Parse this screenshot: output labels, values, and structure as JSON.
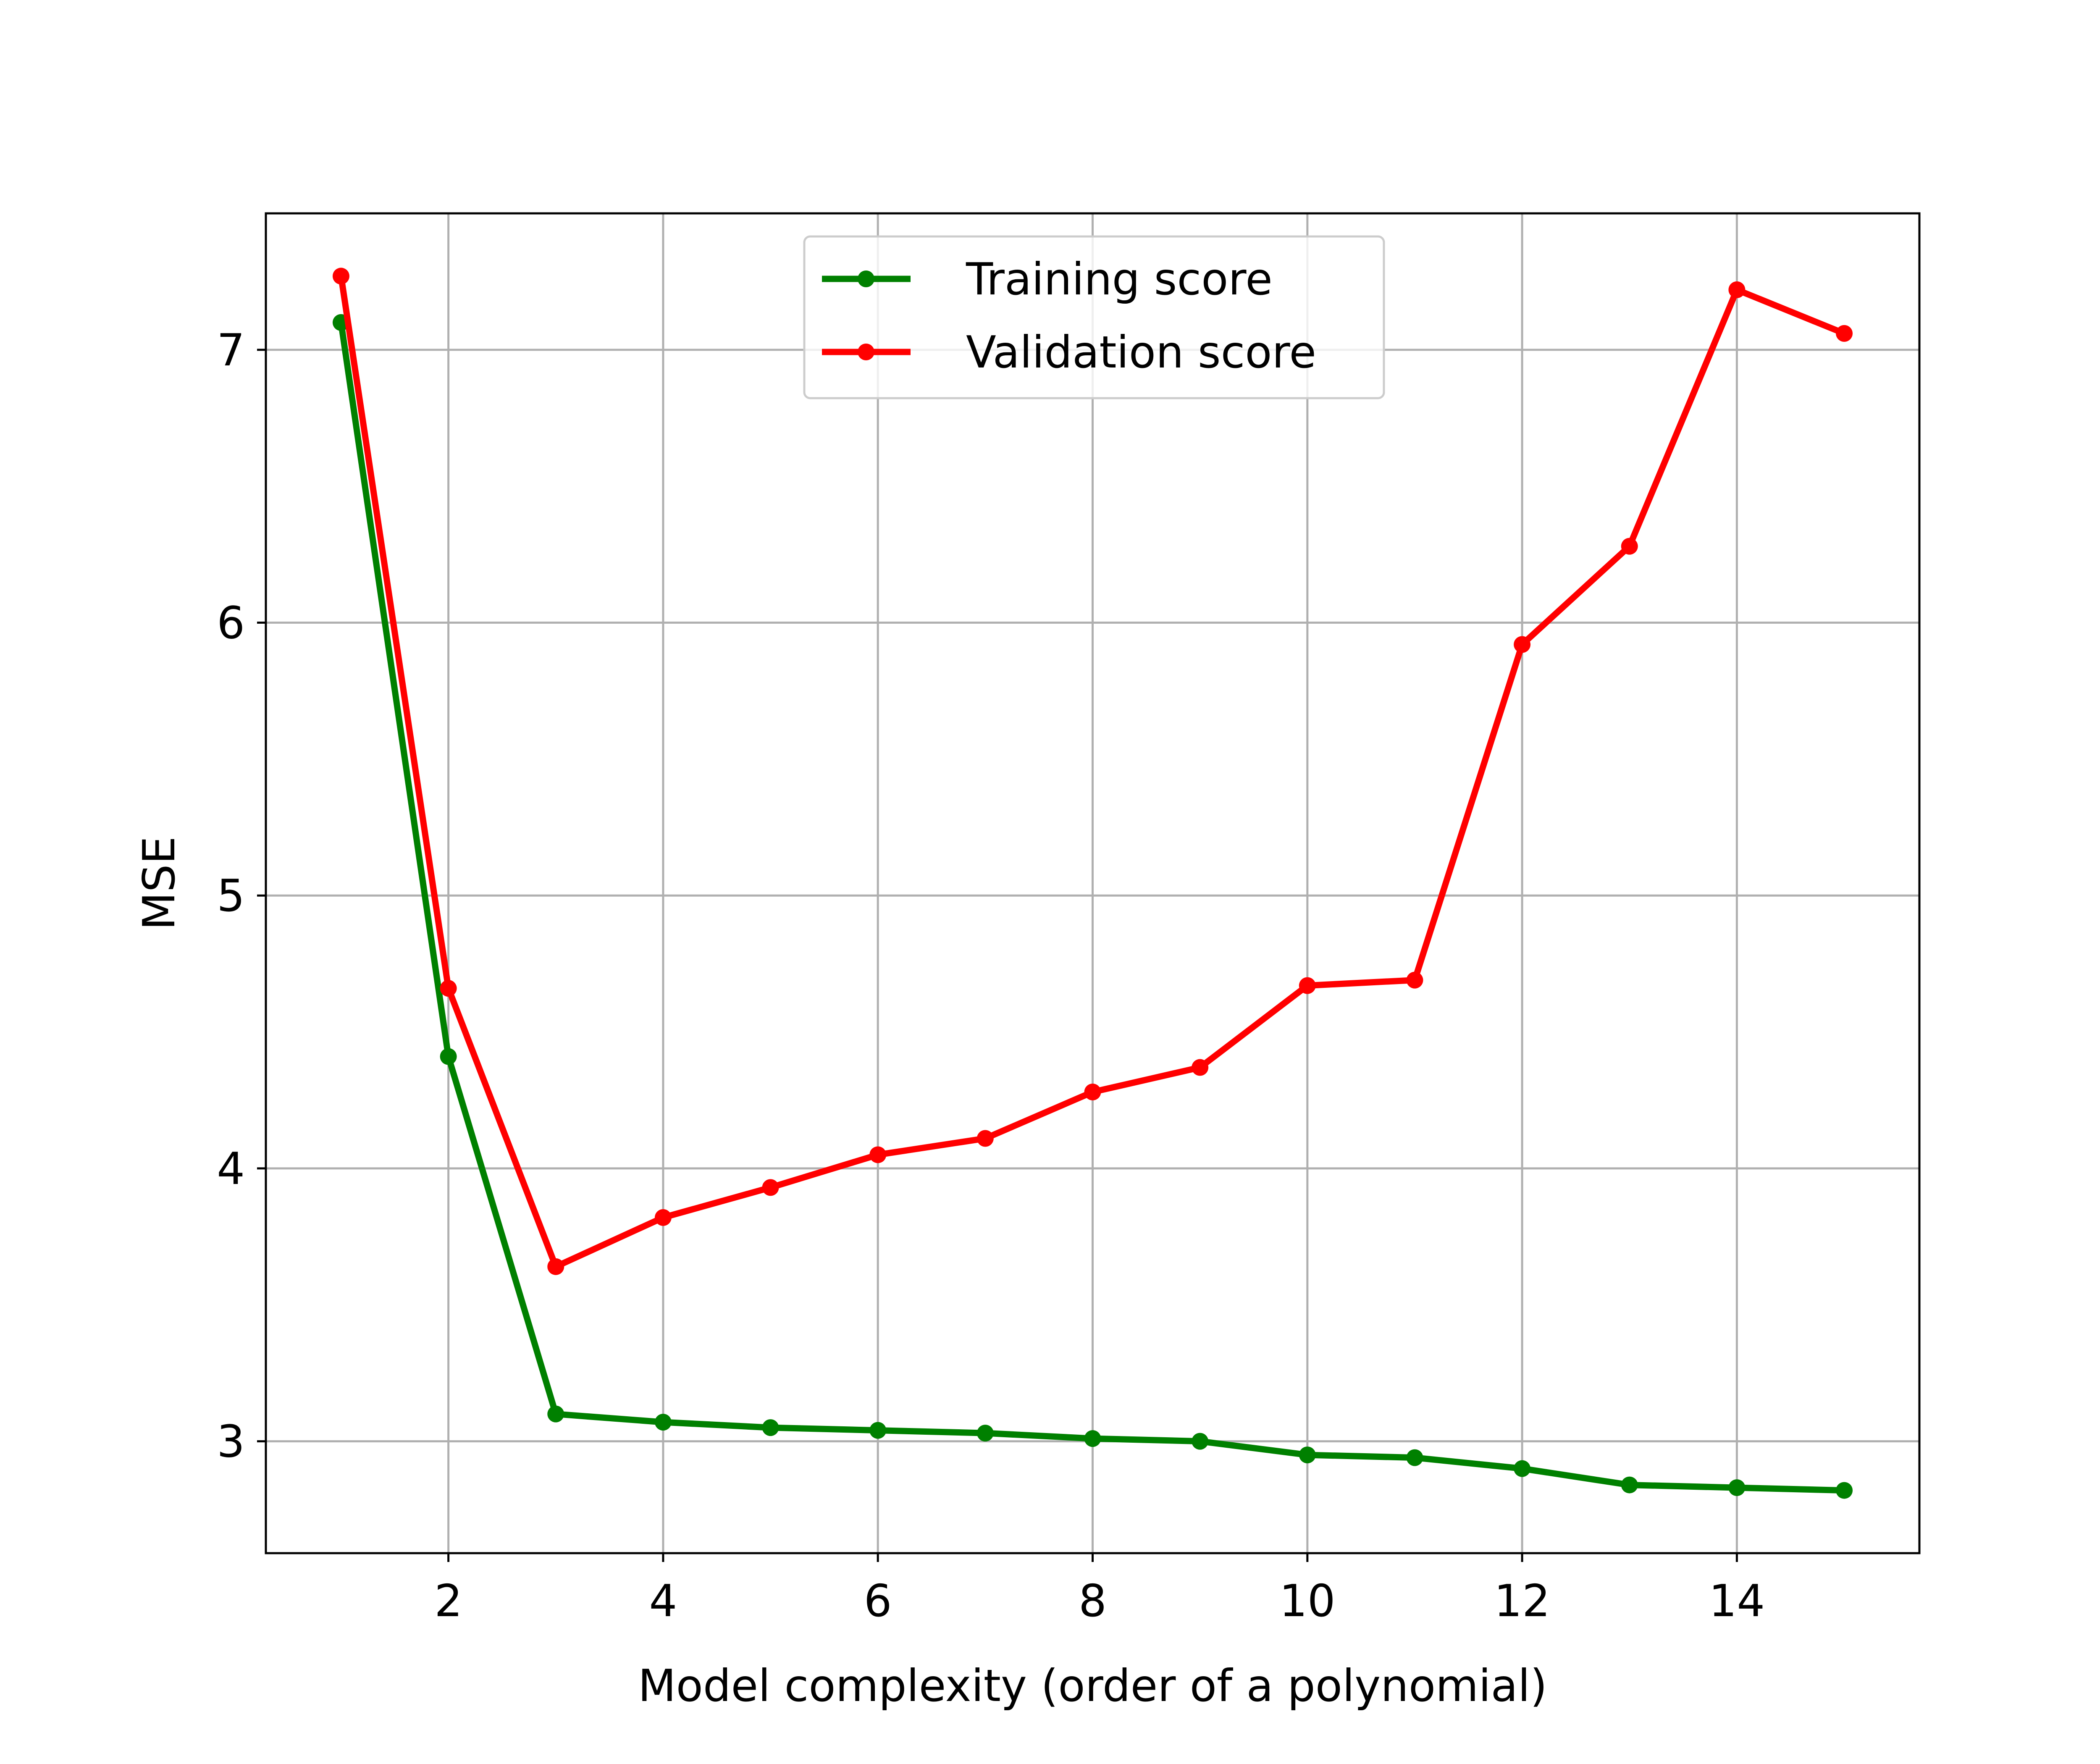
{
  "chart_data": {
    "type": "line",
    "title": "",
    "xlabel": "Model complexity (order of a polynomial)",
    "ylabel": "MSE",
    "xlim": [
      0.3,
      15.7
    ],
    "ylim": [
      2.59,
      7.5
    ],
    "x_ticks": [
      2,
      4,
      6,
      8,
      10,
      12,
      14
    ],
    "y_ticks": [
      3,
      4,
      5,
      6,
      7
    ],
    "grid": true,
    "legend_position": "upper center",
    "x": [
      1,
      2,
      3,
      4,
      5,
      6,
      7,
      8,
      9,
      10,
      11,
      12,
      13,
      14,
      15
    ],
    "series": [
      {
        "name": "Training score",
        "color": "#008000",
        "marker": "dot",
        "values": [
          7.1,
          4.41,
          3.1,
          3.07,
          3.05,
          3.04,
          3.03,
          3.01,
          3.0,
          2.95,
          2.94,
          2.9,
          2.84,
          2.83,
          2.82
        ]
      },
      {
        "name": "Validation score",
        "color": "#ff0000",
        "marker": "dot",
        "values": [
          7.27,
          4.66,
          3.64,
          3.82,
          3.93,
          4.05,
          4.11,
          4.28,
          4.37,
          4.67,
          4.69,
          5.92,
          6.28,
          7.22,
          7.06
        ]
      }
    ]
  }
}
